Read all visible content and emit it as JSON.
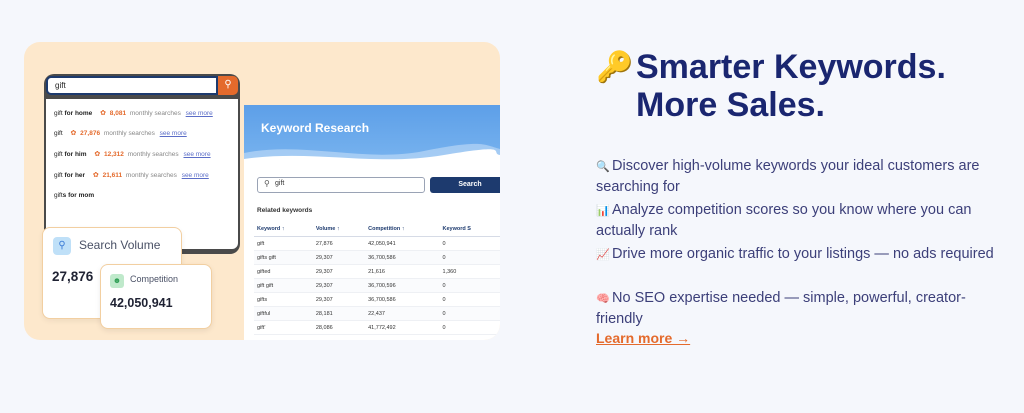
{
  "autocomplete": {
    "query": "gift",
    "suggestions": [
      {
        "prefix": "gift",
        "bold": " for home",
        "count": "8,081",
        "suffix": "monthly searches",
        "link": "see more"
      },
      {
        "prefix": "gift",
        "bold": "",
        "count": "27,876",
        "suffix": "monthly searches",
        "link": "see more"
      },
      {
        "prefix": "gift",
        "bold": " for him",
        "count": "12,312",
        "suffix": "monthly searches",
        "link": "see more"
      },
      {
        "prefix": "gift",
        "bold": " for her",
        "count": "21,611",
        "suffix": "monthly searches",
        "link": "see more"
      },
      {
        "prefix": "gift",
        "bold": "s for mom",
        "count": "",
        "suffix": "",
        "link": ""
      }
    ]
  },
  "keyword_research": {
    "title": "Keyword Research",
    "search_value": "gift",
    "search_button": "Search",
    "related_label": "Related keywords",
    "columns": [
      "Keyword ↑",
      "Volume ↑",
      "Competition ↑",
      "Keyword S"
    ],
    "rows": [
      [
        "gift",
        "27,876",
        "42,050,941",
        "0"
      ],
      [
        "gifts gift",
        "29,307",
        "36,700,586",
        "0"
      ],
      [
        "gifted",
        "29,307",
        "21,616",
        "1,360"
      ],
      [
        "gift gift",
        "29,307",
        "36,700,596",
        "0"
      ],
      [
        "gifts",
        "29,307",
        "36,700,586",
        "0"
      ],
      [
        "giftful",
        "28,181",
        "22,437",
        "0"
      ],
      [
        "gift'",
        "28,086",
        "41,772,492",
        "0"
      ]
    ]
  },
  "search_volume": {
    "label": "Search Volume",
    "value": "27,876"
  },
  "competition": {
    "label": "Competition",
    "value": "42,050,941"
  },
  "heading": {
    "line1": "Smarter Keywords.",
    "line2": "More Sales."
  },
  "features": [
    {
      "icon": "magnifier-icon",
      "glyph": "🔍",
      "text": "Discover high-volume keywords your ideal customers are searching for"
    },
    {
      "icon": "bar-chart-icon",
      "glyph": "📊",
      "text": "Analyze competition scores so you know where you can actually rank"
    },
    {
      "icon": "trend-chart-icon",
      "glyph": "📈",
      "text": "Drive more organic traffic to your listings — no ads required"
    },
    {
      "icon": "brain-icon",
      "glyph": "🧠",
      "text": "No SEO expertise needed — simple, powerful, creator-friendly"
    }
  ],
  "learn_more": "Learn more →",
  "colors": {
    "accent": "#e46a2c",
    "heading": "#1a2670",
    "panel_bg": "#fde8cc",
    "button": "#1d3a6e"
  }
}
